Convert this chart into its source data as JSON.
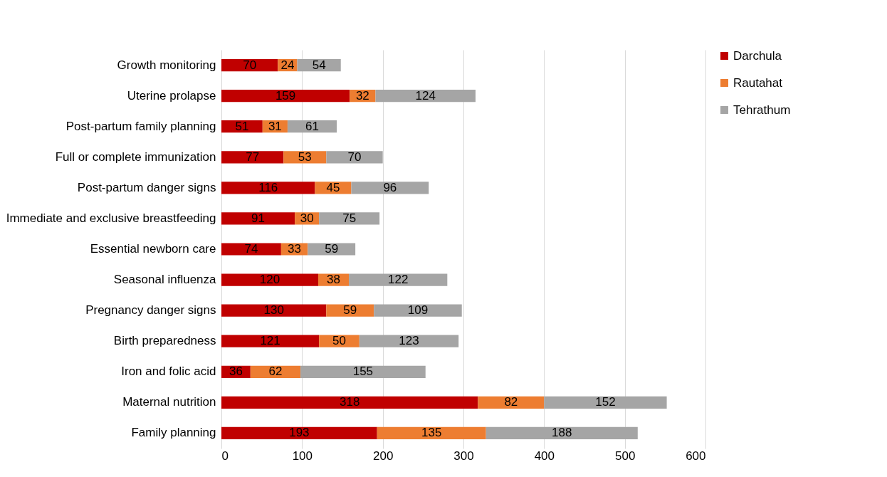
{
  "chart_data": {
    "type": "bar",
    "orientation": "horizontal",
    "stacked": true,
    "data_labels": true,
    "grid": "x",
    "legend": "right",
    "categories": [
      "Growth monitoring",
      "Uterine prolapse",
      "Post-partum family planning",
      "Full or complete immunization",
      "Post-partum danger signs",
      "Immediate and exclusive breastfeeding",
      "Essential newborn care",
      "Seasonal influenza",
      "Pregnancy danger signs",
      "Birth preparedness",
      "Iron and folic acid",
      "Maternal nutrition",
      "Family planning"
    ],
    "series": [
      {
        "name": "Darchula",
        "color": "#c00000",
        "values": [
          70,
          159,
          51,
          77,
          116,
          91,
          74,
          120,
          130,
          121,
          36,
          318,
          193
        ]
      },
      {
        "name": "Rautahat",
        "color": "#ed7d31",
        "values": [
          24,
          32,
          31,
          53,
          45,
          30,
          33,
          38,
          59,
          50,
          62,
          82,
          135
        ]
      },
      {
        "name": "Tehrathum",
        "color": "#a5a5a5",
        "values": [
          54,
          124,
          61,
          70,
          96,
          75,
          59,
          122,
          109,
          123,
          155,
          152,
          188
        ]
      }
    ],
    "xlim": [
      0,
      600
    ],
    "xticks": [
      0,
      100,
      200,
      300,
      400,
      500,
      600
    ]
  }
}
